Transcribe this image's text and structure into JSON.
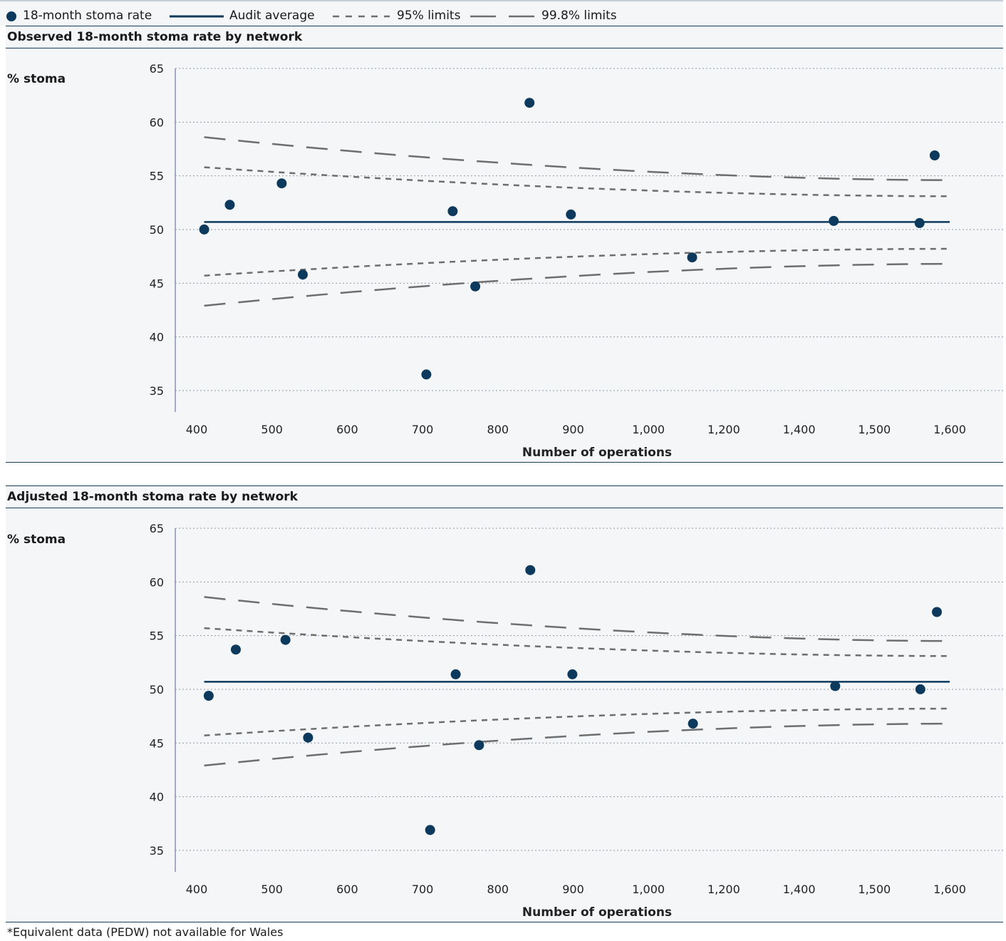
{
  "legend": {
    "items": [
      {
        "label": "18-month stoma rate",
        "kind": "dot"
      },
      {
        "label": "Audit average",
        "kind": "solid"
      },
      {
        "label": "95% limits",
        "kind": "short-dash"
      },
      {
        "label": "99.8% limits",
        "kind": "long-dash"
      }
    ]
  },
  "colors": {
    "point": "#0d3a5c",
    "average": "#0d3a5c",
    "limits": "#6e6e6e",
    "grid": "#8a9aa8",
    "panel_bg": "#f4f6f8"
  },
  "footnote": "*Equivalent data (PEDW) not available for Wales",
  "chart_data": [
    {
      "type": "scatter",
      "title": "Observed 18-month stoma rate by network",
      "ylabel": "% stoma",
      "xlabel": "Number of operations",
      "x_tick_labels": [
        "400",
        "500",
        "600",
        "700",
        "800",
        "900",
        "1,000",
        "1,200",
        "1,400",
        "1,500",
        "1,600"
      ],
      "ylim": [
        33,
        65
      ],
      "y_ticks": [
        35,
        40,
        45,
        50,
        55,
        60,
        65
      ],
      "grid": true,
      "audit_average": 50.7,
      "limits_95": {
        "upper": [
          55.8,
          53.1
        ],
        "lower": [
          45.7,
          48.2
        ]
      },
      "limits_998": {
        "upper": [
          58.6,
          54.6
        ],
        "lower": [
          42.9,
          46.8
        ]
      },
      "points": [
        {
          "x": 410,
          "y": 50.0
        },
        {
          "x": 444,
          "y": 52.3
        },
        {
          "x": 513,
          "y": 54.3
        },
        {
          "x": 541,
          "y": 45.8
        },
        {
          "x": 705,
          "y": 36.5
        },
        {
          "x": 740,
          "y": 51.7
        },
        {
          "x": 770,
          "y": 44.7
        },
        {
          "x": 842,
          "y": 61.8
        },
        {
          "x": 897,
          "y": 51.4
        },
        {
          "x": 1116,
          "y": 47.4
        },
        {
          "x": 1446,
          "y": 50.8
        },
        {
          "x": 1560,
          "y": 50.6
        },
        {
          "x": 1580,
          "y": 56.9
        }
      ]
    },
    {
      "type": "scatter",
      "title": "Adjusted 18-month stoma rate by network",
      "ylabel": "% stoma",
      "xlabel": "Number of operations",
      "x_tick_labels": [
        "400",
        "500",
        "600",
        "700",
        "800",
        "900",
        "1,000",
        "1,200",
        "1,400",
        "1,500",
        "1,600"
      ],
      "ylim": [
        33,
        65
      ],
      "y_ticks": [
        35,
        40,
        45,
        50,
        55,
        60,
        65
      ],
      "grid": true,
      "audit_average": 50.7,
      "limits_95": {
        "upper": [
          55.7,
          53.1
        ],
        "lower": [
          45.7,
          48.2
        ]
      },
      "limits_998": {
        "upper": [
          58.6,
          54.5
        ],
        "lower": [
          42.9,
          46.8
        ]
      },
      "points": [
        {
          "x": 416,
          "y": 49.4
        },
        {
          "x": 452,
          "y": 53.7
        },
        {
          "x": 518,
          "y": 54.6
        },
        {
          "x": 548,
          "y": 45.5
        },
        {
          "x": 710,
          "y": 36.9
        },
        {
          "x": 744,
          "y": 51.4
        },
        {
          "x": 775,
          "y": 44.8
        },
        {
          "x": 843,
          "y": 61.1
        },
        {
          "x": 899,
          "y": 51.4
        },
        {
          "x": 1118,
          "y": 46.8
        },
        {
          "x": 1448,
          "y": 50.3
        },
        {
          "x": 1561,
          "y": 50.0
        },
        {
          "x": 1583,
          "y": 57.2
        }
      ]
    }
  ]
}
